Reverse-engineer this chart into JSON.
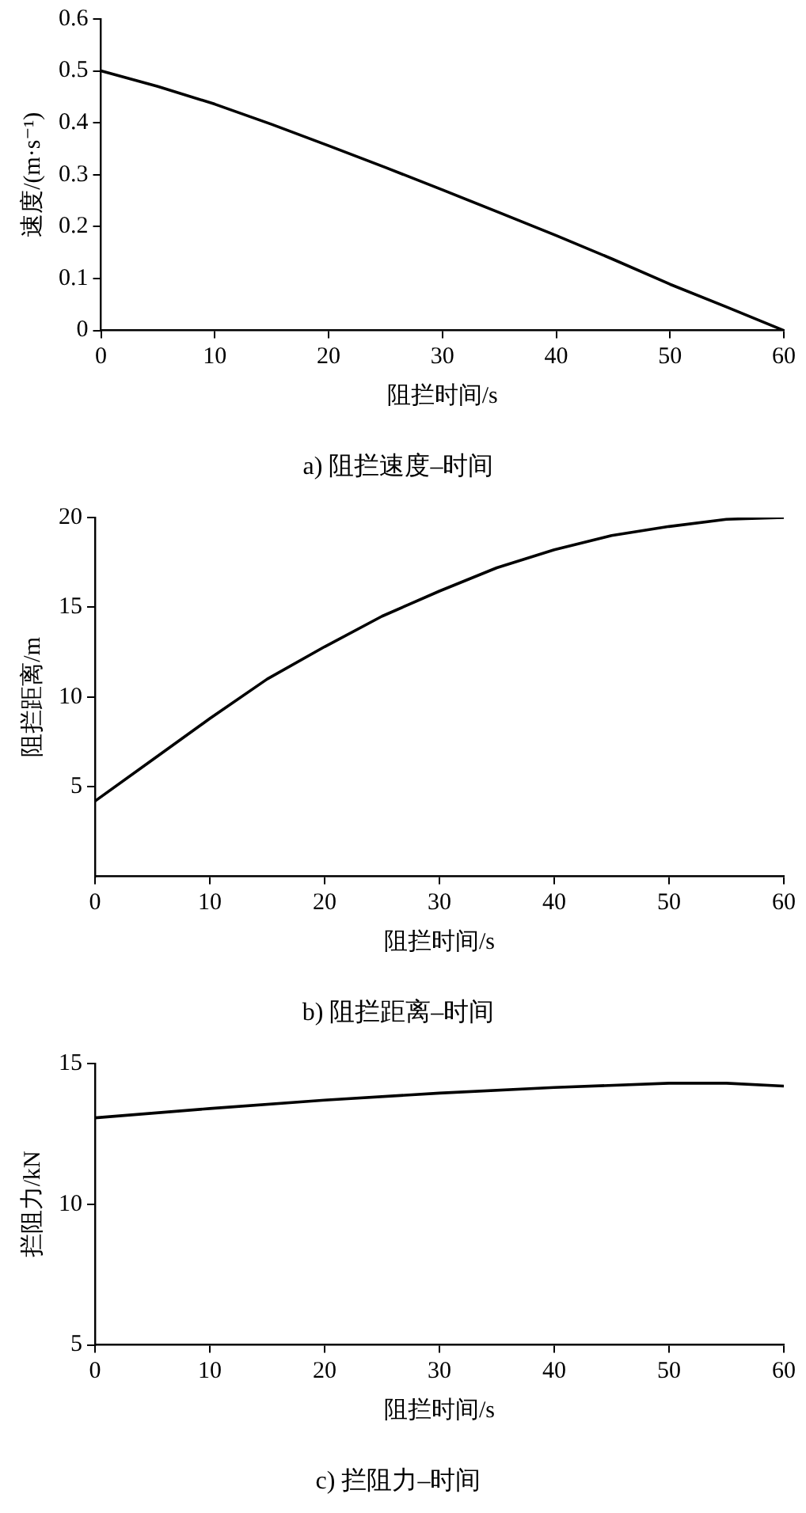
{
  "chart_data": [
    {
      "type": "line",
      "title": "a) 阻拦速度–时间",
      "xlabel": "阻拦时间/s",
      "ylabel": "速度/(m·s⁻¹)",
      "grid": false,
      "legend": false,
      "marker": "none",
      "x": [
        0,
        5,
        10,
        15,
        20,
        25,
        30,
        35,
        40,
        45,
        50,
        55,
        60
      ],
      "series": [
        {
          "color": "#000000",
          "values": [
            0.5,
            0.47,
            0.436,
            0.397,
            0.356,
            0.314,
            0.271,
            0.227,
            0.183,
            0.137,
            0.089,
            0.045,
            0
          ]
        }
      ],
      "xlim": [
        0,
        60
      ],
      "xticks": [
        0,
        10,
        20,
        30,
        40,
        50,
        60
      ],
      "ylim": [
        0,
        0.6
      ],
      "yticks": [
        0,
        0.1,
        0.2,
        0.3,
        0.4,
        0.5,
        0.6
      ]
    },
    {
      "type": "line",
      "title": "b) 阻拦距离–时间",
      "xlabel": "阻拦时间/s",
      "ylabel": "阻拦距离/m",
      "grid": false,
      "legend": false,
      "marker": "none",
      "x": [
        0,
        5,
        10,
        15,
        20,
        25,
        30,
        35,
        40,
        45,
        50,
        55,
        60
      ],
      "series": [
        {
          "color": "#000000",
          "values": [
            4.2,
            6.5,
            8.8,
            11,
            12.8,
            14.5,
            15.9,
            17.2,
            18.2,
            19,
            19.5,
            19.9,
            20
          ]
        }
      ],
      "xlim": [
        0,
        60
      ],
      "xticks": [
        0,
        10,
        20,
        30,
        40,
        50,
        60
      ],
      "ylim": [
        0,
        20
      ],
      "yticks": [
        5,
        10,
        15,
        20
      ]
    },
    {
      "type": "line",
      "title": "c) 拦阻力–时间",
      "xlabel": "阻拦时间/s",
      "ylabel": "拦阻力/kN",
      "grid": false,
      "legend": false,
      "marker": "none",
      "x": [
        0,
        10,
        20,
        30,
        40,
        50,
        55,
        60
      ],
      "series": [
        {
          "color": "#000000",
          "values": [
            13.07,
            13.4,
            13.7,
            13.95,
            14.15,
            14.3,
            14.3,
            14.2
          ]
        }
      ],
      "xlim": [
        0,
        60
      ],
      "xticks": [
        0,
        10,
        20,
        30,
        40,
        50,
        60
      ],
      "ylim": [
        5,
        15
      ],
      "yticks": [
        5,
        10,
        15
      ]
    }
  ]
}
